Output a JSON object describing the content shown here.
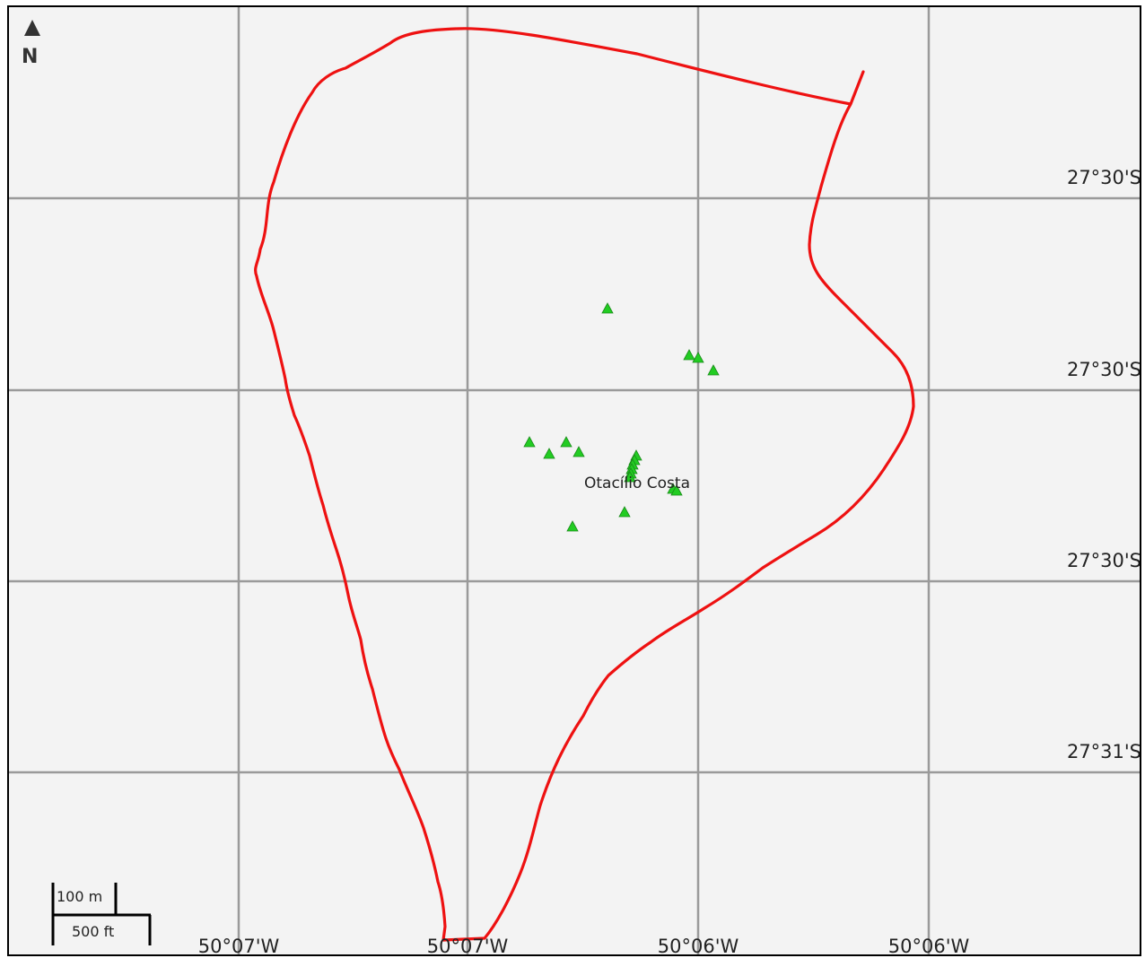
{
  "map": {
    "north_arrow": {
      "letter": "N",
      "icon": "north-arrow-icon"
    },
    "latitude_labels": [
      "27°30'S",
      "27°30'S",
      "27°30'S",
      "27°31'S"
    ],
    "longitude_labels": [
      "50°07'W",
      "50°07'W",
      "50°06'W",
      "50°06'W"
    ],
    "place_label": "Otacílio Costa",
    "scale_bar": {
      "metric": "100 m",
      "imperial": "500 ft"
    },
    "boundary_color": "#ee1111",
    "marker_color": "#22cc22",
    "marker_icon": "triangle-marker-icon",
    "marker_count": 20
  }
}
